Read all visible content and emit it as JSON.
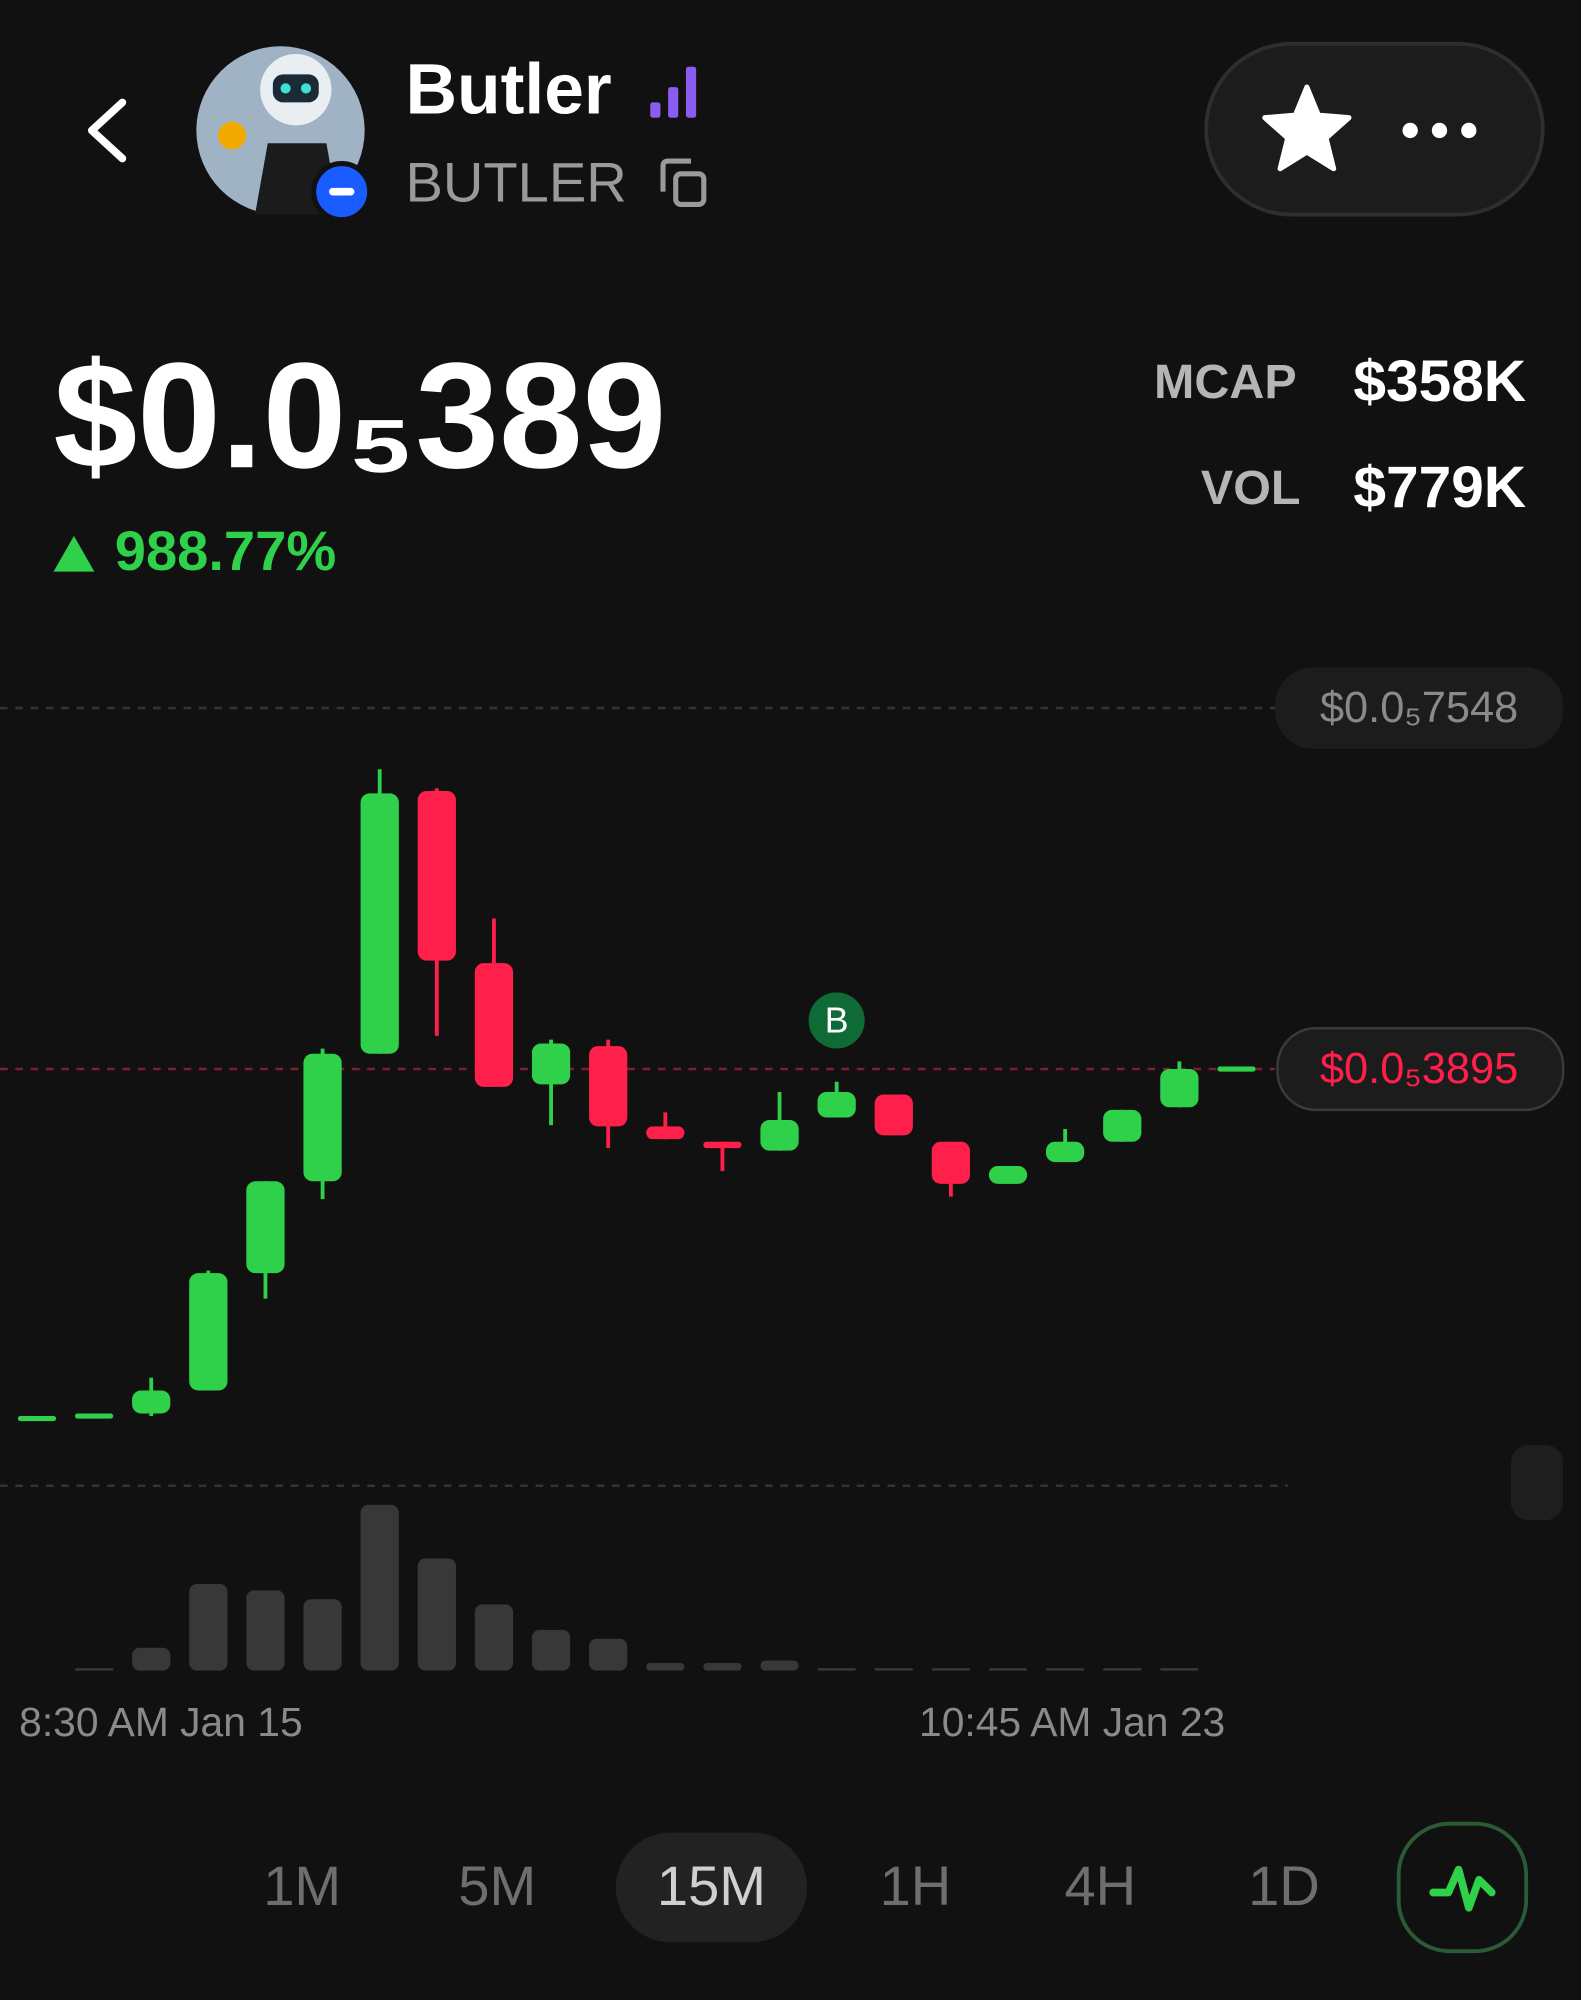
{
  "header": {
    "name": "Butler",
    "ticker": "BUTLER"
  },
  "stats": {
    "price": "$0.0₅389",
    "change": "988.77%",
    "mcap_label": "MCAP",
    "mcap": "$358K",
    "vol_label": "VOL",
    "vol": "$779K"
  },
  "timeframes": {
    "options": [
      "1M",
      "5M",
      "15M",
      "1H",
      "4H",
      "1D"
    ],
    "selected": "15M"
  },
  "chart_data": {
    "type": "candlestick",
    "categories": [
      "8:30 AM Jan 15",
      null,
      null,
      null,
      null,
      null,
      null,
      null,
      null,
      null,
      null,
      null,
      null,
      null,
      null,
      null,
      "10:45 AM Jan 23",
      null,
      null,
      null,
      null,
      null
    ],
    "open": [
      3.58e-07,
      3.83e-07,
      4.09e-07,
      6.42e-07,
      1.829e-06,
      2.759e-06,
      4.05e-06,
      6.709e-06,
      4.967e-06,
      3.74e-06,
      4.127e-06,
      3.314e-06,
      3.159e-06,
      3.069e-06,
      3.404e-06,
      3.637e-06,
      3.159e-06,
      2.733e-06,
      2.953e-06,
      3.159e-06,
      3.508e-06,
      3.895e-06
    ],
    "high": [
      3.58e-07,
      3.83e-07,
      7.71e-07,
      1.855e-06,
      2.759e-06,
      4.102e-06,
      6.929e-06,
      6.735e-06,
      5.418e-06,
      4.192e-06,
      4.192e-06,
      3.456e-06,
      3.159e-06,
      3.663e-06,
      3.766e-06,
      3.637e-06,
      3.159e-06,
      2.914e-06,
      3.288e-06,
      3.482e-06,
      3.972e-06,
      3.895e-06
    ],
    "low": [
      3.58e-07,
      3.83e-07,
      3.83e-07,
      6.42e-07,
      1.571e-06,
      2.578e-06,
      4.05e-06,
      4.231e-06,
      3.714e-06,
      3.327e-06,
      3.095e-06,
      3.185e-06,
      2.862e-06,
      3.069e-06,
      3.404e-06,
      3.224e-06,
      2.604e-06,
      2.733e-06,
      2.953e-06,
      3.159e-06,
      3.508e-06,
      3.895e-06
    ],
    "close": [
      3.58e-07,
      3.83e-07,
      6.42e-07,
      1.829e-06,
      2.759e-06,
      4.05e-06,
      6.684e-06,
      4.992e-06,
      3.714e-06,
      4.153e-06,
      3.314e-06,
      3.185e-06,
      3.095e-06,
      3.379e-06,
      3.663e-06,
      3.224e-06,
      2.733e-06,
      2.914e-06,
      3.159e-06,
      3.482e-06,
      3.895e-06,
      3.895e-06
    ],
    "volumes": [
      0,
      2,
      18,
      68,
      63,
      56,
      130,
      88,
      52,
      32,
      25,
      6,
      6,
      8,
      2,
      2,
      2,
      2,
      2,
      2,
      2,
      0
    ],
    "volume_ylim": [
      0,
      140
    ],
    "ylim": [
      0,
      8e-06
    ],
    "yticks": [
      {
        "value": 7.548e-06,
        "label": "$0.0₅7548"
      }
    ],
    "last_price": {
      "value": 3.895e-06,
      "label": "$0.0₅3895"
    },
    "buy_marker": "B",
    "up_color": "#2fd14a",
    "down_color": "#ff1f4b",
    "volume_color": "#383838"
  }
}
